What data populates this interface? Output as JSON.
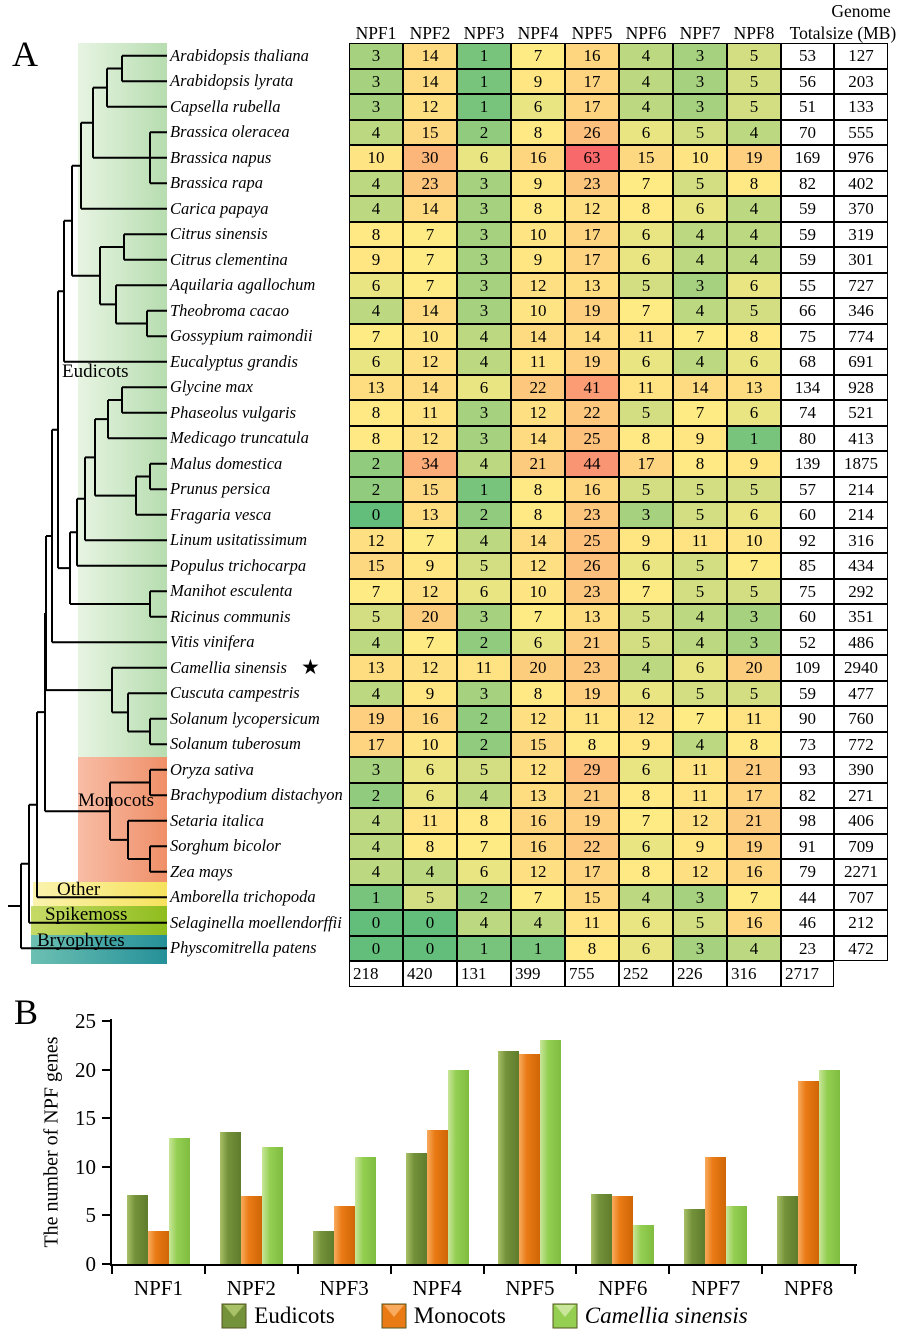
{
  "figure": {
    "panel_a_label": "A",
    "panel_b_label": "B"
  },
  "panel_a": {
    "groups": [
      {
        "label": "Eudicots",
        "color_left": "#e7f4e2",
        "color_right": "#b7ddb0"
      },
      {
        "label": "Monocots",
        "color_left": "#f8bda6",
        "color_right": "#ef8f68"
      },
      {
        "label": "Other",
        "color_left": "#fbf3ae",
        "color_right": "#f6e25e"
      },
      {
        "label": "Spikemoss",
        "color_left": "#c6da67",
        "color_right": "#8fbd1e"
      },
      {
        "label": "Bryophytes",
        "color_left": "#6cc0b2",
        "color_right": "#259099"
      }
    ],
    "star_species": "Camellia sinensis",
    "star_glyph": "★"
  },
  "chart_data": [
    {
      "type": "heatmap",
      "title": "NPF gene numbers per species with genome size",
      "columns": [
        "NPF1",
        "NPF2",
        "NPF3",
        "NPF4",
        "NPF5",
        "NPF6",
        "NPF7",
        "NPF8"
      ],
      "total_label": "Total",
      "genome_label_line1": "Genome",
      "genome_label_line2": "size (MB)",
      "color_scale": {
        "min_value": 0,
        "min_color": "#63BE7B",
        "mid_value": 7,
        "mid_color": "#FFEB84",
        "max_value": 63,
        "max_color": "#F8696B"
      },
      "rows": [
        {
          "species": "Arabidopsis thaliana",
          "group": "Eudicots",
          "values": [
            3,
            14,
            1,
            7,
            16,
            4,
            3,
            5
          ],
          "total": 53,
          "genome": 127,
          "starred": false
        },
        {
          "species": "Arabidopsis lyrata",
          "group": "Eudicots",
          "values": [
            3,
            14,
            1,
            9,
            17,
            4,
            3,
            5
          ],
          "total": 56,
          "genome": 203,
          "starred": false
        },
        {
          "species": "Capsella rubella",
          "group": "Eudicots",
          "values": [
            3,
            12,
            1,
            6,
            17,
            4,
            3,
            5
          ],
          "total": 51,
          "genome": 133,
          "starred": false
        },
        {
          "species": "Brassica oleracea",
          "group": "Eudicots",
          "values": [
            4,
            15,
            2,
            8,
            26,
            6,
            5,
            4
          ],
          "total": 70,
          "genome": 555,
          "starred": false
        },
        {
          "species": "Brassica napus",
          "group": "Eudicots",
          "values": [
            10,
            30,
            6,
            16,
            63,
            15,
            10,
            19
          ],
          "total": 169,
          "genome": 976,
          "starred": false
        },
        {
          "species": "Brassica rapa",
          "group": "Eudicots",
          "values": [
            4,
            23,
            3,
            9,
            23,
            7,
            5,
            8
          ],
          "total": 82,
          "genome": 402,
          "starred": false
        },
        {
          "species": "Carica papaya",
          "group": "Eudicots",
          "values": [
            4,
            14,
            3,
            8,
            12,
            8,
            6,
            4
          ],
          "total": 59,
          "genome": 370,
          "starred": false
        },
        {
          "species": "Citrus sinensis",
          "group": "Eudicots",
          "values": [
            8,
            7,
            3,
            10,
            17,
            6,
            4,
            4
          ],
          "total": 59,
          "genome": 319,
          "starred": false
        },
        {
          "species": "Citrus clementina",
          "group": "Eudicots",
          "values": [
            9,
            7,
            3,
            9,
            17,
            6,
            4,
            4
          ],
          "total": 59,
          "genome": 301,
          "starred": false
        },
        {
          "species": "Aquilaria agallochum",
          "group": "Eudicots",
          "values": [
            6,
            7,
            3,
            12,
            13,
            5,
            3,
            6
          ],
          "total": 55,
          "genome": 727,
          "starred": false
        },
        {
          "species": "Theobroma cacao",
          "group": "Eudicots",
          "values": [
            4,
            14,
            3,
            10,
            19,
            7,
            4,
            5
          ],
          "total": 66,
          "genome": 346,
          "starred": false
        },
        {
          "species": "Gossypium raimondii",
          "group": "Eudicots",
          "values": [
            7,
            10,
            4,
            14,
            14,
            11,
            7,
            8
          ],
          "total": 75,
          "genome": 774,
          "starred": false
        },
        {
          "species": "Eucalyptus grandis",
          "group": "Eudicots",
          "values": [
            6,
            12,
            4,
            11,
            19,
            6,
            4,
            6
          ],
          "total": 68,
          "genome": 691,
          "starred": false
        },
        {
          "species": "Glycine max",
          "group": "Eudicots",
          "values": [
            13,
            14,
            6,
            22,
            41,
            11,
            14,
            13
          ],
          "total": 134,
          "genome": 928,
          "starred": false
        },
        {
          "species": "Phaseolus vulgaris",
          "group": "Eudicots",
          "values": [
            8,
            11,
            3,
            12,
            22,
            5,
            7,
            6
          ],
          "total": 74,
          "genome": 521,
          "starred": false
        },
        {
          "species": "Medicago truncatula",
          "group": "Eudicots",
          "values": [
            8,
            12,
            3,
            14,
            25,
            8,
            9,
            1
          ],
          "total": 80,
          "genome": 413,
          "starred": false
        },
        {
          "species": "Malus domestica",
          "group": "Eudicots",
          "values": [
            2,
            34,
            4,
            21,
            44,
            17,
            8,
            9
          ],
          "total": 139,
          "genome": 1875,
          "starred": false
        },
        {
          "species": "Prunus persica",
          "group": "Eudicots",
          "values": [
            2,
            15,
            1,
            8,
            16,
            5,
            5,
            5
          ],
          "total": 57,
          "genome": 214,
          "starred": false
        },
        {
          "species": "Fragaria vesca",
          "group": "Eudicots",
          "values": [
            0,
            13,
            2,
            8,
            23,
            3,
            5,
            6
          ],
          "total": 60,
          "genome": 214,
          "starred": false
        },
        {
          "species": "Linum usitatissimum",
          "group": "Eudicots",
          "values": [
            12,
            7,
            4,
            14,
            25,
            9,
            11,
            10
          ],
          "total": 92,
          "genome": 316,
          "starred": false
        },
        {
          "species": "Populus trichocarpa",
          "group": "Eudicots",
          "values": [
            15,
            9,
            5,
            12,
            26,
            6,
            5,
            7
          ],
          "total": 85,
          "genome": 434,
          "starred": false
        },
        {
          "species": "Manihot esculenta",
          "group": "Eudicots",
          "values": [
            7,
            12,
            6,
            10,
            23,
            7,
            5,
            5
          ],
          "total": 75,
          "genome": 292,
          "starred": false
        },
        {
          "species": "Ricinus communis",
          "group": "Eudicots",
          "values": [
            5,
            20,
            3,
            7,
            13,
            5,
            4,
            3
          ],
          "total": 60,
          "genome": 351,
          "starred": false
        },
        {
          "species": "Vitis vinifera",
          "group": "Eudicots",
          "values": [
            4,
            7,
            2,
            6,
            21,
            5,
            4,
            3
          ],
          "total": 52,
          "genome": 486,
          "starred": false
        },
        {
          "species": "Camellia sinensis",
          "group": "Eudicots",
          "values": [
            13,
            12,
            11,
            20,
            23,
            4,
            6,
            20
          ],
          "total": 109,
          "genome": 2940,
          "starred": true
        },
        {
          "species": "Cuscuta campestris",
          "group": "Eudicots",
          "values": [
            4,
            9,
            3,
            8,
            19,
            6,
            5,
            5
          ],
          "total": 59,
          "genome": 477,
          "starred": false
        },
        {
          "species": "Solanum lycopersicum",
          "group": "Eudicots",
          "values": [
            19,
            16,
            2,
            12,
            11,
            12,
            7,
            11
          ],
          "total": 90,
          "genome": 760,
          "starred": false
        },
        {
          "species": "Solanum tuberosum",
          "group": "Eudicots",
          "values": [
            17,
            10,
            2,
            15,
            8,
            9,
            4,
            8
          ],
          "total": 73,
          "genome": 772,
          "starred": false
        },
        {
          "species": "Oryza sativa",
          "group": "Monocots",
          "values": [
            3,
            6,
            5,
            12,
            29,
            6,
            11,
            21
          ],
          "total": 93,
          "genome": 390,
          "starred": false
        },
        {
          "species": "Brachypodium distachyon",
          "group": "Monocots",
          "values": [
            2,
            6,
            4,
            13,
            21,
            8,
            11,
            17
          ],
          "total": 82,
          "genome": 271,
          "starred": false
        },
        {
          "species": "Setaria italica",
          "group": "Monocots",
          "values": [
            4,
            11,
            8,
            16,
            19,
            7,
            12,
            21
          ],
          "total": 98,
          "genome": 406,
          "starred": false
        },
        {
          "species": "Sorghum bicolor",
          "group": "Monocots",
          "values": [
            4,
            8,
            7,
            16,
            22,
            6,
            9,
            19
          ],
          "total": 91,
          "genome": 709,
          "starred": false
        },
        {
          "species": "Zea mays",
          "group": "Monocots",
          "values": [
            4,
            4,
            6,
            12,
            17,
            8,
            12,
            16
          ],
          "total": 79,
          "genome": 2271,
          "starred": false
        },
        {
          "species": "Amborella trichopoda",
          "group": "Other",
          "values": [
            1,
            5,
            2,
            7,
            15,
            4,
            3,
            7
          ],
          "total": 44,
          "genome": 707,
          "starred": false
        },
        {
          "species": "Selaginella moellendorffii",
          "group": "Spikemoss",
          "values": [
            0,
            0,
            4,
            4,
            11,
            6,
            5,
            16
          ],
          "total": 46,
          "genome": 212,
          "starred": false
        },
        {
          "species": "Physcomitrella patens",
          "group": "Bryophytes",
          "values": [
            0,
            0,
            1,
            1,
            8,
            6,
            3,
            4
          ],
          "total": 23,
          "genome": 472,
          "starred": false
        }
      ],
      "totals": {
        "values": [
          218,
          420,
          131,
          399,
          755,
          252,
          226,
          316
        ],
        "total": 2717
      }
    },
    {
      "type": "bar",
      "categories": [
        "NPF1",
        "NPF2",
        "NPF3",
        "NPF4",
        "NPF5",
        "NPF6",
        "NPF7",
        "NPF8"
      ],
      "series": [
        {
          "name": "Eudicots",
          "values": [
            7.1,
            13.6,
            3.4,
            11.4,
            21.9,
            7.2,
            5.7,
            7.0
          ],
          "color": "#74923a",
          "light": "#a9c167",
          "dark": "#5f7c2c",
          "italic": false
        },
        {
          "name": "Monocots",
          "values": [
            3.4,
            7.0,
            6.0,
            13.8,
            21.6,
            7.0,
            11.0,
            18.8
          ],
          "color": "#ea7a14",
          "light": "#f8ab5e",
          "dark": "#cf6606",
          "italic": false
        },
        {
          "name": "Camellia sinensis",
          "values": [
            13,
            12,
            11,
            20,
            23,
            4,
            6,
            20
          ],
          "color": "#94cf52",
          "light": "#cae69b",
          "dark": "#7fbd3f",
          "italic": true
        }
      ],
      "xlabel": "",
      "ylabel": "The number of NPF genes",
      "ylim": [
        0,
        25
      ],
      "yticks": [
        0,
        5,
        10,
        15,
        20,
        25
      ],
      "grid": false,
      "legend_position": "bottom"
    }
  ]
}
